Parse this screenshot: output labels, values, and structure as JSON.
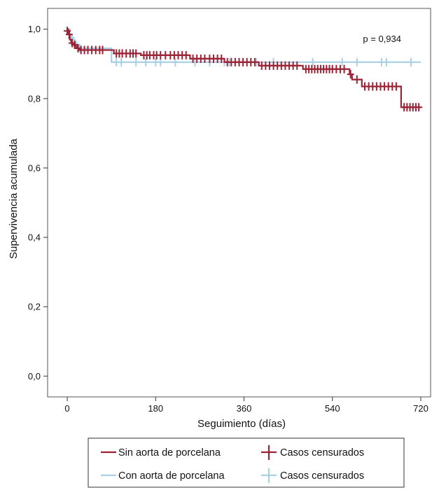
{
  "chart_data": {
    "type": "line",
    "title": "",
    "xlabel": "Seguimiento (días)",
    "ylabel": "Supervivencia acumulada",
    "xlim": [
      -40,
      740
    ],
    "ylim": [
      -0.06,
      1.06
    ],
    "xticks": [
      0,
      180,
      360,
      540,
      720
    ],
    "xtick_labels": [
      "0",
      "180",
      "360",
      "540",
      "720"
    ],
    "yticks": [
      0.0,
      0.2,
      0.4,
      0.6,
      0.8,
      1.0
    ],
    "ytick_labels": [
      "0,0",
      "0,2",
      "0,4",
      "0,6",
      "0,8",
      "1,0"
    ],
    "grid": false,
    "annotation": "p = 0,934",
    "series": [
      {
        "name": "Sin aorta de porcelana",
        "color": "#9b2335",
        "steps": [
          [
            0,
            1.0
          ],
          [
            2,
            0.985
          ],
          [
            5,
            0.97
          ],
          [
            8,
            0.96
          ],
          [
            12,
            0.955
          ],
          [
            16,
            0.95
          ],
          [
            20,
            0.945
          ],
          [
            25,
            0.94
          ],
          [
            95,
            0.93
          ],
          [
            150,
            0.925
          ],
          [
            250,
            0.915
          ],
          [
            320,
            0.905
          ],
          [
            390,
            0.895
          ],
          [
            480,
            0.885
          ],
          [
            575,
            0.87
          ],
          [
            580,
            0.855
          ],
          [
            600,
            0.835
          ],
          [
            680,
            0.775
          ],
          [
            720,
            0.775
          ]
        ],
        "censored": [
          [
            0,
            0.995
          ],
          [
            4,
            0.985
          ],
          [
            10,
            0.96
          ],
          [
            15,
            0.955
          ],
          [
            22,
            0.945
          ],
          [
            28,
            0.94
          ],
          [
            35,
            0.94
          ],
          [
            42,
            0.94
          ],
          [
            50,
            0.94
          ],
          [
            58,
            0.94
          ],
          [
            66,
            0.94
          ],
          [
            72,
            0.94
          ],
          [
            100,
            0.93
          ],
          [
            106,
            0.93
          ],
          [
            112,
            0.93
          ],
          [
            120,
            0.93
          ],
          [
            128,
            0.93
          ],
          [
            134,
            0.93
          ],
          [
            140,
            0.93
          ],
          [
            156,
            0.925
          ],
          [
            162,
            0.925
          ],
          [
            168,
            0.925
          ],
          [
            176,
            0.925
          ],
          [
            182,
            0.925
          ],
          [
            190,
            0.925
          ],
          [
            200,
            0.925
          ],
          [
            210,
            0.925
          ],
          [
            218,
            0.925
          ],
          [
            226,
            0.925
          ],
          [
            234,
            0.925
          ],
          [
            242,
            0.925
          ],
          [
            256,
            0.915
          ],
          [
            264,
            0.915
          ],
          [
            272,
            0.915
          ],
          [
            280,
            0.915
          ],
          [
            290,
            0.915
          ],
          [
            298,
            0.915
          ],
          [
            306,
            0.915
          ],
          [
            314,
            0.915
          ],
          [
            326,
            0.905
          ],
          [
            334,
            0.905
          ],
          [
            342,
            0.905
          ],
          [
            350,
            0.905
          ],
          [
            358,
            0.905
          ],
          [
            366,
            0.905
          ],
          [
            374,
            0.905
          ],
          [
            382,
            0.905
          ],
          [
            396,
            0.895
          ],
          [
            404,
            0.895
          ],
          [
            412,
            0.895
          ],
          [
            420,
            0.895
          ],
          [
            428,
            0.895
          ],
          [
            436,
            0.895
          ],
          [
            444,
            0.895
          ],
          [
            452,
            0.895
          ],
          [
            460,
            0.895
          ],
          [
            468,
            0.895
          ],
          [
            486,
            0.885
          ],
          [
            492,
            0.885
          ],
          [
            498,
            0.885
          ],
          [
            504,
            0.885
          ],
          [
            510,
            0.885
          ],
          [
            516,
            0.885
          ],
          [
            522,
            0.885
          ],
          [
            528,
            0.885
          ],
          [
            534,
            0.885
          ],
          [
            540,
            0.885
          ],
          [
            548,
            0.885
          ],
          [
            556,
            0.885
          ],
          [
            564,
            0.885
          ],
          [
            577,
            0.87
          ],
          [
            590,
            0.855
          ],
          [
            606,
            0.835
          ],
          [
            614,
            0.835
          ],
          [
            622,
            0.835
          ],
          [
            630,
            0.835
          ],
          [
            638,
            0.835
          ],
          [
            646,
            0.835
          ],
          [
            654,
            0.835
          ],
          [
            662,
            0.835
          ],
          [
            670,
            0.835
          ],
          [
            686,
            0.775
          ],
          [
            692,
            0.775
          ],
          [
            698,
            0.775
          ],
          [
            704,
            0.775
          ],
          [
            710,
            0.775
          ],
          [
            716,
            0.775
          ]
        ]
      },
      {
        "name": "Con aorta de porcelana",
        "color": "#a8d0e6",
        "steps": [
          [
            0,
            1.0
          ],
          [
            5,
            0.98
          ],
          [
            10,
            0.97
          ],
          [
            15,
            0.96
          ],
          [
            20,
            0.955
          ],
          [
            25,
            0.945
          ],
          [
            90,
            0.905
          ],
          [
            720,
            0.905
          ]
        ],
        "censored": [
          [
            8,
            0.975
          ],
          [
            14,
            0.96
          ],
          [
            18,
            0.955
          ],
          [
            26,
            0.945
          ],
          [
            100,
            0.905
          ],
          [
            110,
            0.905
          ],
          [
            140,
            0.905
          ],
          [
            160,
            0.905
          ],
          [
            180,
            0.905
          ],
          [
            190,
            0.905
          ],
          [
            220,
            0.905
          ],
          [
            260,
            0.905
          ],
          [
            290,
            0.905
          ],
          [
            320,
            0.905
          ],
          [
            330,
            0.905
          ],
          [
            350,
            0.905
          ],
          [
            385,
            0.905
          ],
          [
            420,
            0.905
          ],
          [
            500,
            0.905
          ],
          [
            560,
            0.905
          ],
          [
            590,
            0.905
          ],
          [
            640,
            0.905
          ],
          [
            650,
            0.905
          ],
          [
            700,
            0.905
          ]
        ]
      }
    ]
  },
  "legend": {
    "rows": [
      {
        "line_label": "Sin aorta de porcelana",
        "marker_label": "Casos censurados",
        "color": "#9b2335"
      },
      {
        "line_label": "Con aorta de porcelana",
        "marker_label": "Casos censurados",
        "color": "#a8d0e6"
      }
    ]
  }
}
